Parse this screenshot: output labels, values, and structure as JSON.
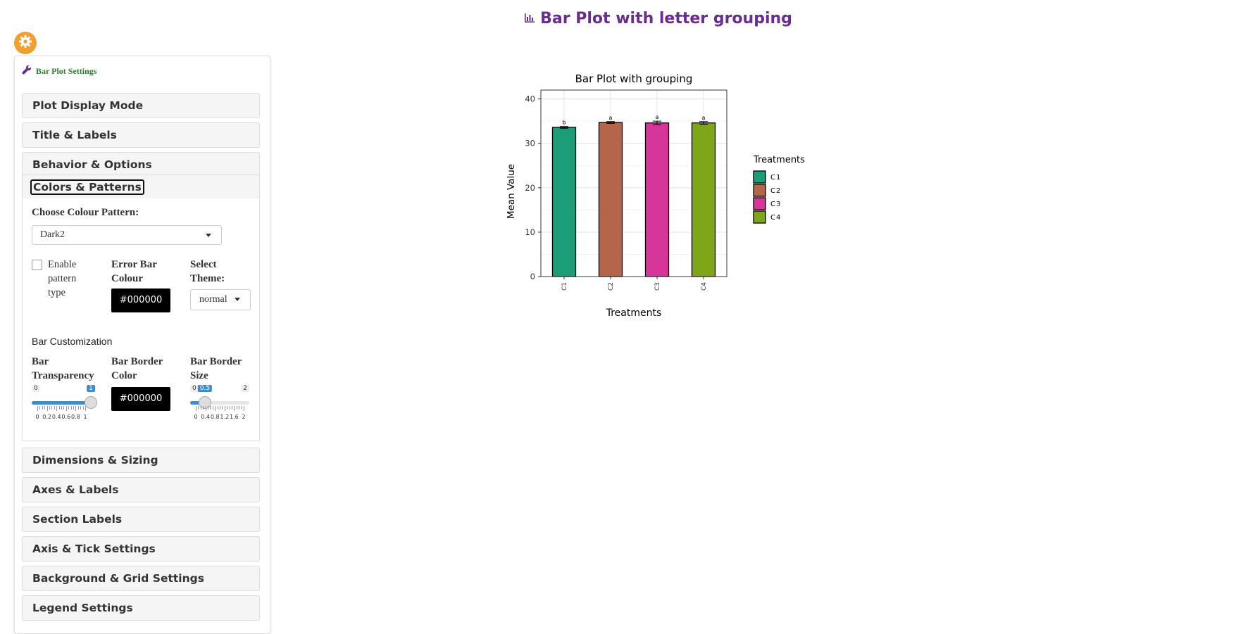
{
  "header": {
    "title": "Bar Plot with letter grouping",
    "title_icon": "bar-chart-icon"
  },
  "settings_button": {
    "icon": "gear-icon",
    "color": "#f0a030"
  },
  "panel": {
    "header": "Bar Plot Settings",
    "header_icon": "wrench-icon",
    "sections_top": [
      {
        "label": "Plot Display Mode"
      },
      {
        "label": "Title & Labels"
      },
      {
        "label": "Behavior & Options"
      }
    ],
    "open_section": {
      "label": "Colors & Patterns",
      "colour_pattern_label": "Choose Colour Pattern:",
      "colour_pattern_value": "Dark2",
      "pattern_checkbox_label": "Enable pattern type",
      "error_bar_colour_label": "Error Bar Colour",
      "error_bar_colour_value": "#000000",
      "theme_label": "Select Theme:",
      "theme_value": "normal",
      "bar_customization_label": "Bar Customization",
      "bar_transparency_label": "Bar Transparency",
      "bar_transparency": {
        "min": "0",
        "max": "1",
        "value": "1",
        "value_num": 1,
        "tick_labels": [
          "0",
          "0.2",
          "0.4",
          "0.6",
          "0.8",
          "1"
        ]
      },
      "bar_border_color_label": "Bar Border Color",
      "bar_border_color_value": "#000000",
      "bar_border_size_label": "Bar Border Size",
      "bar_border_size": {
        "min": "0",
        "max": "2",
        "value": "0.5",
        "value_num": 0.5,
        "tick_labels": [
          "0",
          "0.4",
          "0.8",
          "1.2",
          "1.6",
          "2"
        ]
      }
    },
    "sections_bottom": [
      {
        "label": "Dimensions & Sizing"
      },
      {
        "label": "Axes & Labels"
      },
      {
        "label": "Section Labels"
      },
      {
        "label": "Axis & Tick Settings"
      },
      {
        "label": "Background & Grid Settings"
      },
      {
        "label": "Legend Settings"
      }
    ]
  },
  "chart_data": {
    "type": "bar",
    "title": "Bar Plot with grouping",
    "xlabel": "Treatments",
    "ylabel": "Mean Value",
    "categories": [
      "C1",
      "C2",
      "C3",
      "C4"
    ],
    "values": [
      33.6,
      34.7,
      34.6,
      34.6
    ],
    "errors": [
      0.2,
      0.2,
      0.4,
      0.3
    ],
    "group_letters": [
      "b",
      "a",
      "a",
      "a"
    ],
    "colors": [
      "#1b9e77",
      "#b5654a",
      "#d6359a",
      "#7fa619"
    ],
    "ylim": [
      0,
      42
    ],
    "yticks": [
      0,
      10,
      20,
      30,
      40
    ],
    "grid": true,
    "legend": {
      "title": "Treatments",
      "entries": [
        "C1",
        "C2",
        "C3",
        "C4"
      ],
      "placement": "right"
    }
  }
}
